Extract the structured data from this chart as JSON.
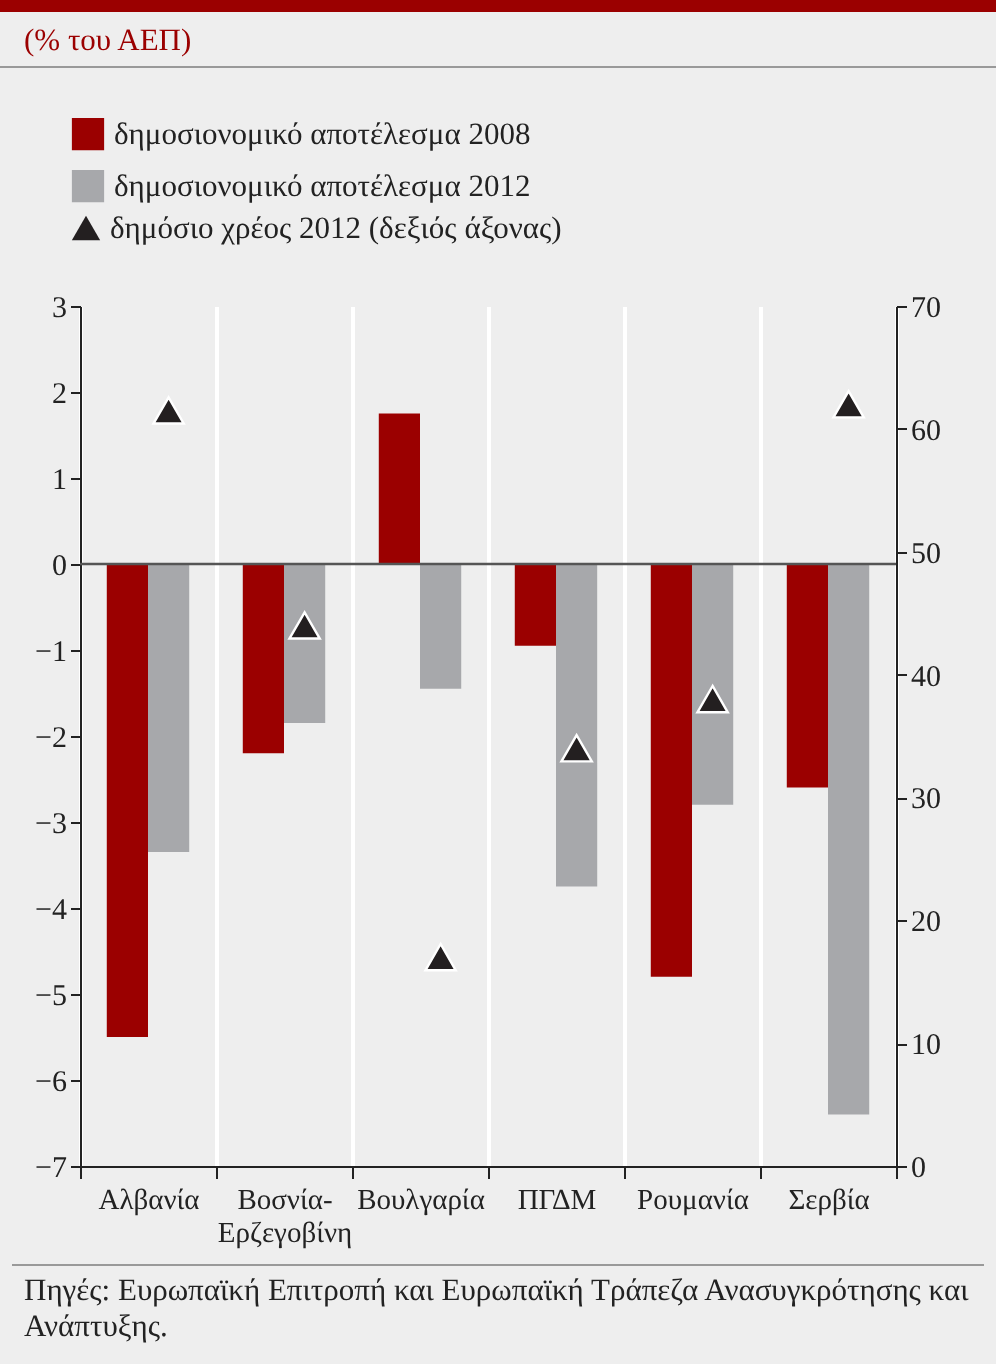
{
  "chart_data": {
    "type": "bar",
    "title": "(% του ΑΕΠ)",
    "categories": [
      "Αλβανία",
      "Βοσνία-Ερζεγοβίνη",
      "Βουλγαρία",
      "ΠΓΔΜ",
      "Ρουμανία",
      "Σερβία"
    ],
    "series": [
      {
        "name": "δημοσιονομικό αποτέλεσμα 2008",
        "color": "#9b0000",
        "values": [
          -5.5,
          -2.2,
          1.75,
          -0.95,
          -4.8,
          -2.6
        ]
      },
      {
        "name": "δημοσιονομικό αποτέλεσμα 2012",
        "color": "#a7a8ab",
        "values": [
          -3.35,
          -1.85,
          -1.45,
          -3.75,
          -2.8,
          -6.4
        ]
      },
      {
        "name": "δημόσιο χρέος 2012 (δεξιός άξονας)",
        "type": "scatter",
        "marker": "triangle",
        "axis": "y2",
        "color": "#231f20",
        "values": [
          61.5,
          44,
          17,
          34,
          38,
          62
        ]
      }
    ],
    "ylim": [
      -7,
      3
    ],
    "yticks": [
      -7,
      -6,
      -5,
      -4,
      -3,
      -2,
      -1,
      0,
      1,
      2,
      3
    ],
    "y2lim": [
      0,
      70
    ],
    "y2ticks": [
      0,
      10,
      20,
      30,
      40,
      50,
      60,
      70
    ],
    "ref_lines": [
      {
        "axis": "y",
        "value": 0,
        "color": "#555555"
      }
    ],
    "grid": "x",
    "legend": "top left",
    "annotations": [
      "Πηγές: Ευρωπαϊκή Επιτροπή και Ευρωπαϊκή Τράπεζα Ανασυγκρότησης και Ανάπτυξης."
    ]
  }
}
